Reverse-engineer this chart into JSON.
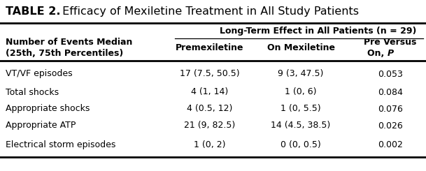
{
  "title_bold": "TABLE 2.",
  "title_regular": " Efficacy of Mexiletine Treatment in All Study Patients",
  "group_header": "Long-Term Effect in All Patients (n = 29)",
  "col_header_1": "Premexiletine",
  "col_header_2": "On Mexiletine",
  "col_header_3a": "Pre Versus",
  "col_header_3b": "On, ",
  "col_header_3b_italic": "P",
  "row_label_header_1": "Number of Events Median",
  "row_label_header_2": "(25th, 75th Percentiles)",
  "rows": [
    [
      "VT/VF episodes",
      "17 (7.5, 50.5)",
      "9 (3, 47.5)",
      "0.053"
    ],
    [
      "Total shocks",
      "4 (1, 14)",
      "1 (0, 6)",
      "0.084"
    ],
    [
      "Appropriate shocks",
      "4 (0.5, 12)",
      "1 (0, 5.5)",
      "0.076"
    ],
    [
      "Appropriate ATP",
      "21 (9, 82.5)",
      "14 (4.5, 38.5)",
      "0.026"
    ],
    [
      "Electrical storm episodes",
      "1 (0, 2)",
      "0 (0, 0.5)",
      "0.002"
    ]
  ],
  "bg_color": "#ffffff",
  "text_color": "#000000",
  "line_color": "#000000",
  "figsize": [
    6.09,
    2.45
  ],
  "dpi": 100
}
